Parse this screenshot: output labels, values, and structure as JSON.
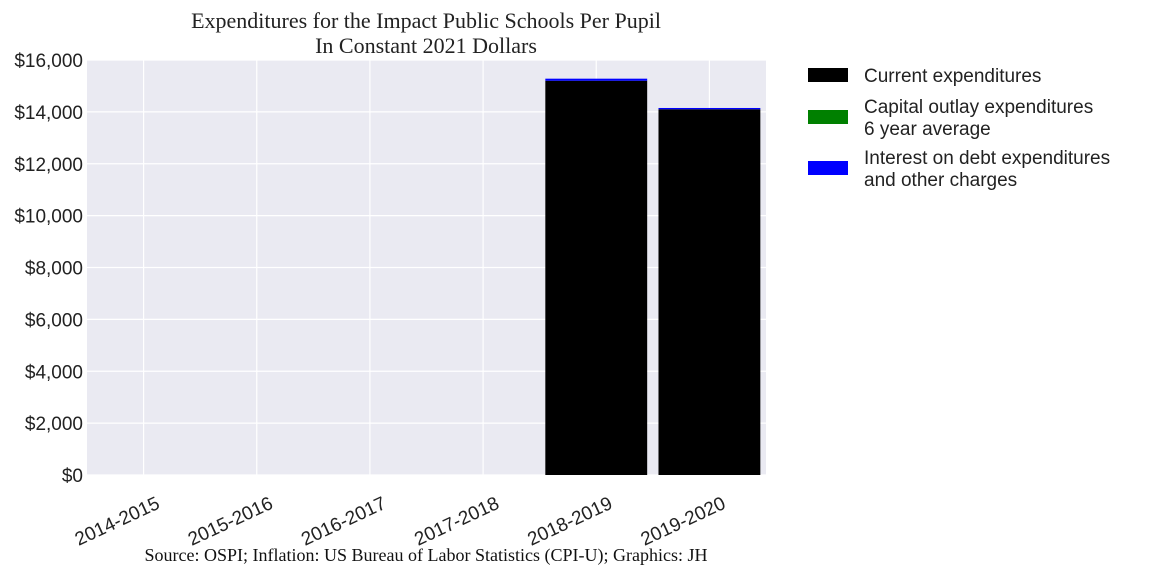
{
  "chart_data": {
    "type": "bar",
    "stacked": true,
    "title": [
      "Expenditures for the Impact Public Schools Per Pupil",
      "In Constant 2021 Dollars"
    ],
    "xlabel": "",
    "ylabel": "",
    "categories": [
      "2014-2015",
      "2015-2016",
      "2016-2017",
      "2017-2018",
      "2018-2019",
      "2019-2020"
    ],
    "ylim": [
      0,
      16000
    ],
    "yticks": [
      0,
      2000,
      4000,
      6000,
      8000,
      10000,
      12000,
      14000,
      16000
    ],
    "ytick_labels": [
      "$0",
      "$2,000",
      "$4,000",
      "$6,000",
      "$8,000",
      "$10,000",
      "$12,000",
      "$14,000",
      "$16,000"
    ],
    "grid": true,
    "legend_position": "right, outside plot",
    "series": [
      {
        "name": [
          "Current expenditures"
        ],
        "color": "#000000",
        "values": [
          0,
          0,
          0,
          0,
          15200,
          14100
        ]
      },
      {
        "name": [
          "Capital outlay expenditures",
          "6 year average"
        ],
        "color": "#008000",
        "values": [
          0,
          0,
          0,
          0,
          0,
          0
        ]
      },
      {
        "name": [
          "Interest on debt expenditures",
          "and other charges"
        ],
        "color": "#0000ff",
        "values": [
          0,
          0,
          0,
          0,
          80,
          50
        ]
      }
    ],
    "source": "Source: OSPI; Inflation: US Bureau of Labor Statistics (CPI-U); Graphics: JH"
  }
}
